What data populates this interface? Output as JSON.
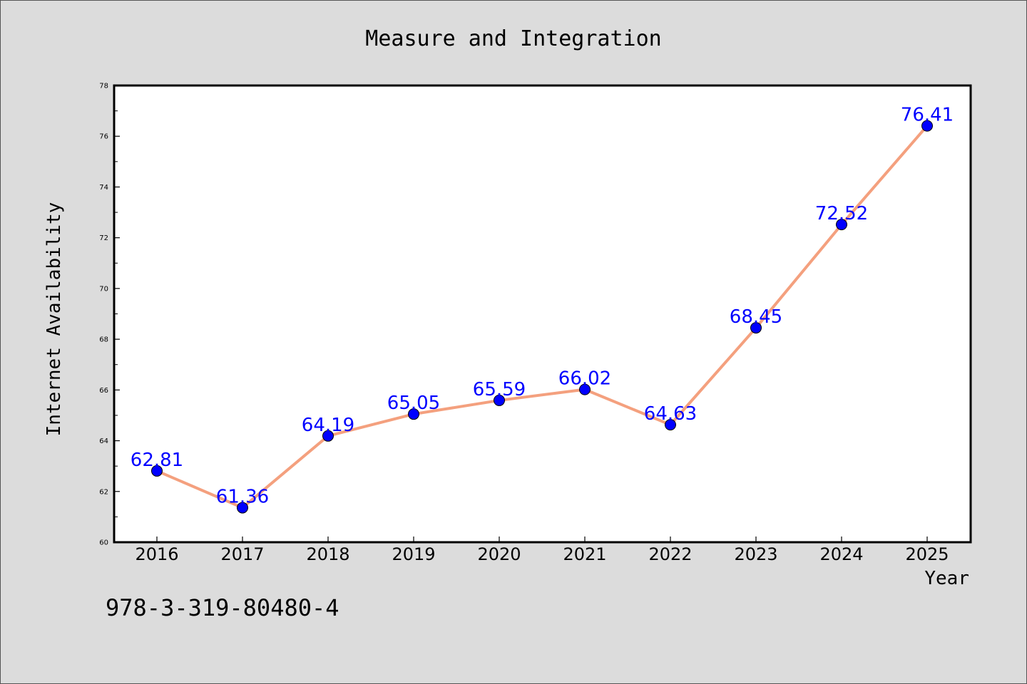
{
  "chart_data": {
    "type": "line",
    "title": "Measure and Integration",
    "xlabel": "Year",
    "ylabel": "Internet Availability",
    "categories": [
      "2016",
      "2017",
      "2018",
      "2019",
      "2020",
      "2021",
      "2022",
      "2023",
      "2024",
      "2025"
    ],
    "series": [
      {
        "values": [
          62.81,
          61.36,
          64.19,
          65.05,
          65.59,
          66.02,
          64.63,
          68.45,
          72.52,
          76.41
        ],
        "labels": [
          "62.81",
          "61.36",
          "64.19",
          "65.05",
          "65.59",
          "66.02",
          "64.63",
          "68.45",
          "72.52",
          "76.41"
        ]
      }
    ],
    "ylim": [
      60,
      78
    ],
    "yticks": [
      "60",
      "62",
      "64",
      "66",
      "68",
      "70",
      "72",
      "74",
      "76",
      "78"
    ],
    "grid": false,
    "legend": "none",
    "colors": {
      "line": "#f4a07e",
      "marker": "#0000ff",
      "data_label": "#0000ff",
      "background": "#dcdcdc",
      "plot_background": "#ffffff"
    }
  },
  "footer": {
    "isbn": "978-3-319-80480-4"
  }
}
